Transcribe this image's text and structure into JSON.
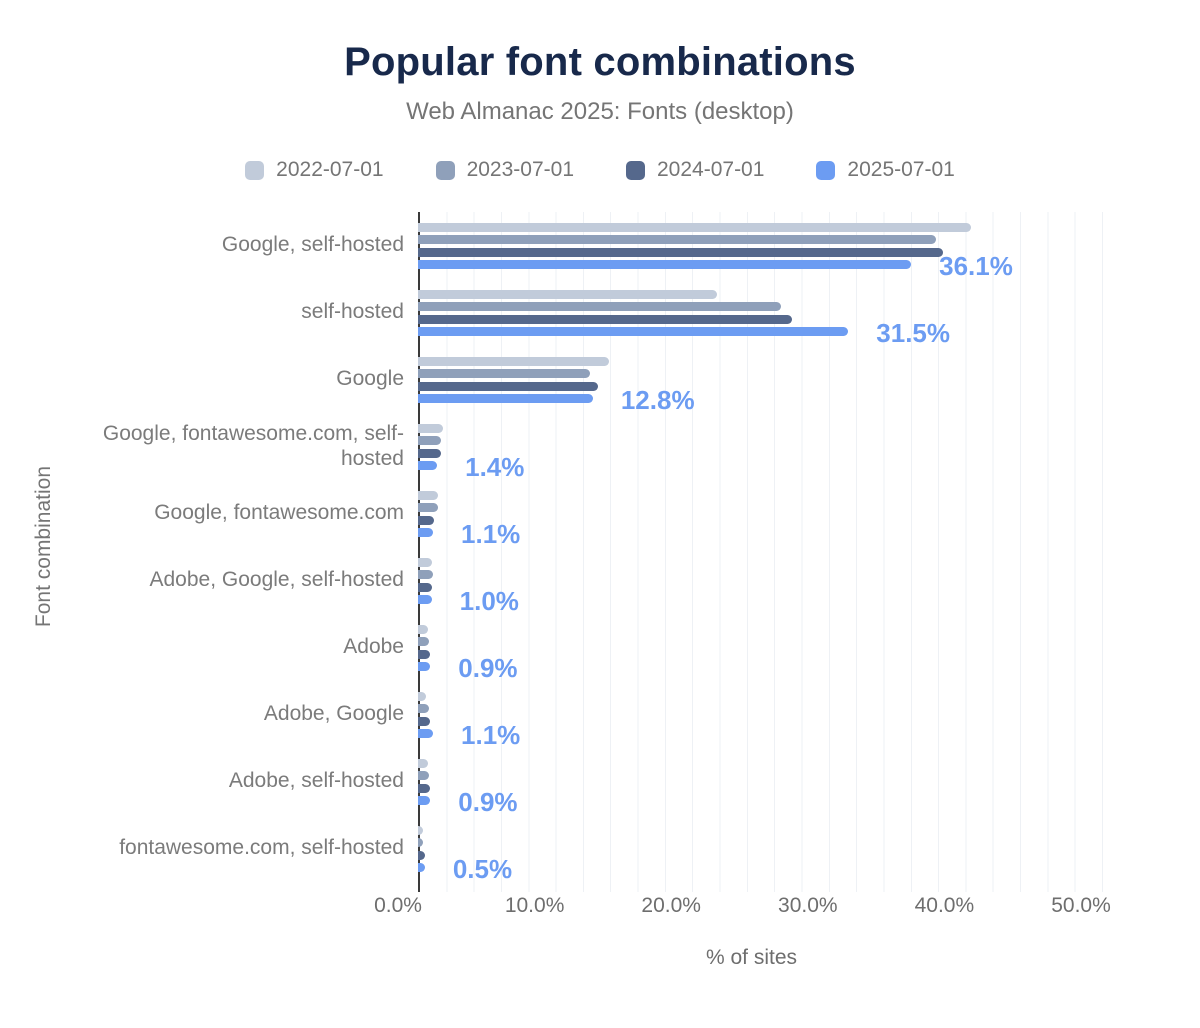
{
  "chart_data": {
    "type": "bar",
    "orientation": "horizontal",
    "title": "Popular font combinations",
    "subtitle": "Web Almanac 2025: Fonts (desktop)",
    "xlabel": "% of sites",
    "ylabel": "Font combination",
    "xlim": [
      0,
      50
    ],
    "grid": "vertical minor gridlines every 2%",
    "legend_position": "top",
    "x_ticks": [
      {
        "value": 0,
        "label": "0.0%"
      },
      {
        "value": 10,
        "label": "10.0%"
      },
      {
        "value": 20,
        "label": "20.0%"
      },
      {
        "value": 30,
        "label": "30.0%"
      },
      {
        "value": 40,
        "label": "40.0%"
      },
      {
        "value": 50,
        "label": "50.0%"
      }
    ],
    "categories": [
      "Google, self-hosted",
      "self-hosted",
      "Google",
      "Google, fontawesome.com, self-hosted",
      "Google, fontawesome.com",
      "Adobe, Google, self-hosted",
      "Adobe",
      "Adobe, Google",
      "Adobe, self-hosted",
      "fontawesome.com, self-hosted"
    ],
    "series": [
      {
        "name": "2022-07-01",
        "color": "#c1cbda",
        "values": [
          40.5,
          21.9,
          14.0,
          1.8,
          1.5,
          1.0,
          0.7,
          0.6,
          0.7,
          0.4
        ]
      },
      {
        "name": "2023-07-01",
        "color": "#8fa0ba",
        "values": [
          37.9,
          26.6,
          12.6,
          1.7,
          1.5,
          1.1,
          0.8,
          0.8,
          0.8,
          0.4
        ]
      },
      {
        "name": "2024-07-01",
        "color": "#55688c",
        "values": [
          38.4,
          27.4,
          13.2,
          1.7,
          1.2,
          1.0,
          0.9,
          0.9,
          0.9,
          0.5
        ]
      },
      {
        "name": "2025-07-01",
        "color": "#6c9cf2",
        "values": [
          36.1,
          31.5,
          12.8,
          1.4,
          1.1,
          1.0,
          0.9,
          1.1,
          0.9,
          0.5
        ]
      }
    ],
    "data_labels": {
      "series": "2025-07-01",
      "color": "#6c9cf2",
      "values": [
        "36.1%",
        "31.5%",
        "12.8%",
        "1.4%",
        "1.1%",
        "1.0%",
        "0.9%",
        "1.1%",
        "0.9%",
        "0.5%"
      ]
    },
    "colors": {
      "title": "#18294b",
      "subtitle": "#757575",
      "axis_line": "#3a3a3a",
      "gridline": "#eef1f5",
      "tick_text": "#6e6e6e",
      "category_text": "#7b7b7b"
    }
  }
}
